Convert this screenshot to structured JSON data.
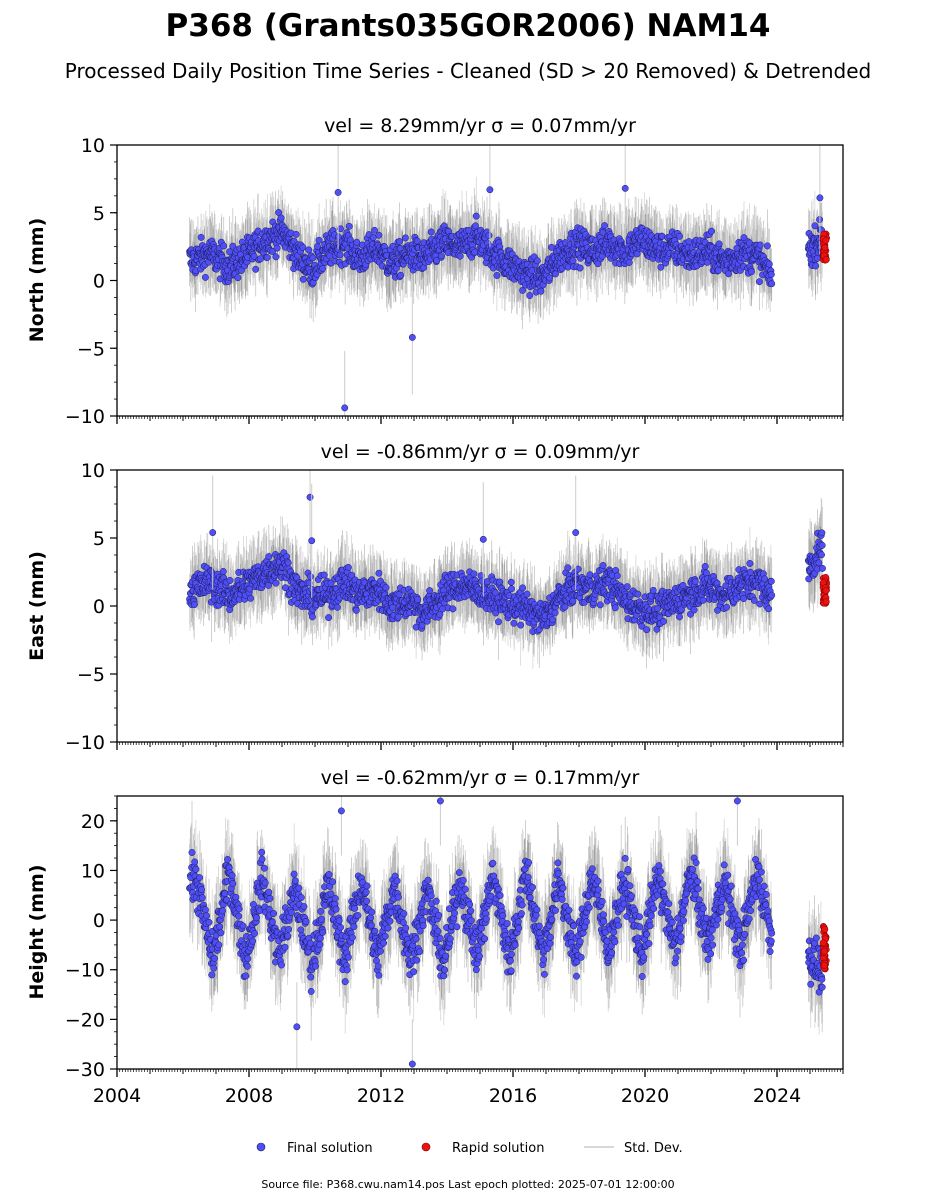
{
  "figure": {
    "title": "P368 (Grants035GOR2006) NAM14",
    "subtitle": "Processed Daily Position Time Series - Cleaned (SD > 20 Removed) & Detrended",
    "footer": "Source file: P368.cwu.nam14.pos  Last epoch plotted: 2025-07-01 12:00:00"
  },
  "legend": {
    "final": "Final solution",
    "rapid": "Rapid solution",
    "std": "Std. Dev."
  },
  "colors": {
    "final_fill": "#4f4ff5",
    "final_edge": "#1a1a5a",
    "rapid_fill": "#ee1111",
    "rapid_edge": "#7a0000",
    "std_line": "#cccccc",
    "std_dense": "#555555"
  },
  "chart_data": [
    {
      "type": "scatter",
      "panel": "north",
      "title": "vel = 8.29mm/yr   σ = 0.07mm/yr",
      "ylabel": "North (mm)",
      "xlim": [
        2004.0,
        2026.0
      ],
      "ylim": [
        -10,
        10
      ],
      "yticks": [
        -10,
        -5,
        0,
        5,
        10
      ],
      "xticks": [
        2004,
        2008,
        2012,
        2016,
        2020,
        2024
      ],
      "xlabels_shown": false,
      "series": [
        {
          "name": "Final solution",
          "spans": [
            [
              2006.2,
              2023.85
            ],
            [
              2024.95,
              2025.38
            ]
          ],
          "x": [
            2006.3,
            2006.8,
            2007.4,
            2007.9,
            2008.5,
            2009.0,
            2009.5,
            2009.9,
            2010.4,
            2010.9,
            2011.3,
            2011.9,
            2012.3,
            2012.9,
            2013.3,
            2013.9,
            2014.4,
            2014.9,
            2015.4,
            2015.9,
            2016.4,
            2016.9,
            2017.4,
            2017.9,
            2018.4,
            2018.9,
            2019.4,
            2019.9,
            2020.4,
            2020.9,
            2021.4,
            2021.9,
            2022.4,
            2022.9,
            2023.4,
            2023.8,
            2025.1,
            2025.3
          ],
          "y": [
            1.5,
            2.0,
            1.0,
            1.8,
            3.0,
            3.6,
            1.8,
            0.8,
            2.2,
            2.8,
            1.6,
            2.4,
            1.2,
            2.0,
            1.6,
            2.8,
            2.4,
            3.2,
            2.0,
            1.2,
            0.4,
            0.2,
            1.8,
            2.6,
            2.2,
            2.8,
            2.2,
            3.0,
            2.2,
            2.4,
            1.8,
            2.2,
            1.4,
            2.0,
            1.8,
            0.4,
            2.5,
            3.0
          ]
        },
        {
          "name": "Rapid solution",
          "x": [
            2025.4,
            2025.42,
            2025.45,
            2025.47,
            2025.5
          ],
          "y": [
            1.5,
            2.0,
            2.5,
            3.0,
            3.5
          ]
        }
      ],
      "outliers": [
        [
          2010.9,
          -9.4
        ],
        [
          2012.95,
          -4.2
        ],
        [
          2010.7,
          6.5
        ],
        [
          2015.3,
          6.7
        ],
        [
          2019.4,
          6.8
        ],
        [
          2025.3,
          6.1
        ]
      ]
    },
    {
      "type": "scatter",
      "panel": "east",
      "title": "vel = -0.86mm/yr   σ = 0.09mm/yr",
      "ylabel": "East (mm)",
      "xlim": [
        2004.0,
        2026.0
      ],
      "ylim": [
        -10,
        10
      ],
      "yticks": [
        -10,
        -5,
        0,
        5,
        10
      ],
      "xticks": [
        2004,
        2008,
        2012,
        2016,
        2020,
        2024
      ],
      "xlabels_shown": false,
      "series": [
        {
          "name": "Final solution",
          "spans": [
            [
              2006.2,
              2023.85
            ],
            [
              2024.95,
              2025.38
            ]
          ],
          "x": [
            2006.3,
            2006.8,
            2007.4,
            2007.9,
            2008.5,
            2009.0,
            2009.5,
            2009.9,
            2010.4,
            2010.9,
            2011.3,
            2011.9,
            2012.3,
            2012.9,
            2013.3,
            2013.9,
            2014.4,
            2014.9,
            2015.4,
            2015.9,
            2016.4,
            2016.9,
            2017.4,
            2017.9,
            2018.4,
            2018.9,
            2019.4,
            2019.9,
            2020.4,
            2020.9,
            2021.4,
            2021.9,
            2022.4,
            2022.9,
            2023.4,
            2023.8,
            2025.1,
            2025.3
          ],
          "y": [
            1.2,
            1.8,
            0.8,
            1.5,
            2.5,
            3.2,
            1.0,
            0.6,
            0.8,
            1.8,
            0.8,
            1.2,
            0.0,
            0.4,
            -0.6,
            0.8,
            1.6,
            1.2,
            0.6,
            0.2,
            -0.2,
            -1.0,
            0.6,
            1.6,
            1.2,
            1.8,
            0.4,
            -0.2,
            -0.4,
            0.4,
            1.0,
            1.4,
            0.8,
            1.6,
            1.8,
            0.8,
            3.2,
            4.2
          ]
        },
        {
          "name": "Rapid solution",
          "x": [
            2025.4,
            2025.42,
            2025.45,
            2025.47,
            2025.5
          ],
          "y": [
            0.2,
            0.8,
            1.2,
            1.8,
            2.2
          ]
        }
      ],
      "outliers": [
        [
          2009.85,
          8.0
        ],
        [
          2009.9,
          4.8
        ],
        [
          2006.9,
          5.4
        ],
        [
          2015.1,
          4.9
        ],
        [
          2017.9,
          5.4
        ]
      ]
    },
    {
      "type": "scatter",
      "panel": "height",
      "title": "vel = -0.62mm/yr   σ = 0.17mm/yr",
      "ylabel": "Height (mm)",
      "xlim": [
        2004.0,
        2026.0
      ],
      "ylim": [
        -30,
        25
      ],
      "yticks": [
        -30,
        -20,
        -10,
        0,
        10,
        20
      ],
      "xticks": [
        2004,
        2008,
        2012,
        2016,
        2020,
        2024
      ],
      "xlabels_shown": true,
      "series": [
        {
          "name": "Final solution",
          "spans": [
            [
              2006.2,
              2023.85
            ],
            [
              2024.95,
              2025.38
            ]
          ],
          "amplitude": 9,
          "period_years": 1.0,
          "x": [
            2006.4,
            2006.9,
            2007.4,
            2007.9,
            2008.4,
            2008.9,
            2009.4,
            2009.9,
            2010.4,
            2010.9,
            2011.4,
            2011.9,
            2012.4,
            2012.9,
            2013.4,
            2013.9,
            2014.4,
            2014.9,
            2015.4,
            2015.9,
            2016.4,
            2016.9,
            2017.4,
            2017.9,
            2018.4,
            2018.9,
            2019.4,
            2019.9,
            2020.4,
            2020.9,
            2021.4,
            2021.9,
            2022.4,
            2022.9,
            2023.4,
            2023.8,
            2025.1,
            2025.3
          ],
          "y": [
            8,
            -8,
            10,
            -8,
            9,
            -7,
            6,
            -9,
            7,
            -8,
            8,
            -8,
            7,
            -8,
            6,
            -9,
            8,
            -7,
            9,
            -8,
            10,
            -7,
            8,
            -8,
            9,
            -6,
            8,
            -7,
            9,
            -6,
            10,
            -5,
            8,
            -6,
            10,
            -2,
            -8,
            -10
          ]
        },
        {
          "name": "Rapid solution",
          "x": [
            2025.4,
            2025.42,
            2025.45,
            2025.47,
            2025.5
          ],
          "y": [
            -10,
            -8,
            -5,
            -3,
            -1
          ]
        }
      ],
      "outliers": [
        [
          2009.45,
          -21.5
        ],
        [
          2012.95,
          -29.0
        ],
        [
          2013.8,
          24.0
        ],
        [
          2022.8,
          24.0
        ],
        [
          2010.8,
          22.0
        ]
      ]
    }
  ]
}
